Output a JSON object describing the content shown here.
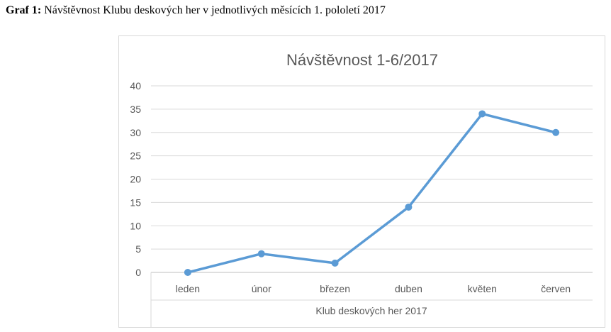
{
  "caption": {
    "label": "Graf 1:",
    "text": " Návštěvnost Klubu deskových her v jednotlivých měsících 1. pololetí 2017"
  },
  "chart_data": {
    "type": "line",
    "title": "Návštěvnost 1-6/2017",
    "categories": [
      "leden",
      "únor",
      "březen",
      "duben",
      "květen",
      "červen"
    ],
    "values": [
      0,
      4,
      2,
      14,
      34,
      30
    ],
    "xlabel": "Klub deskových her 2017",
    "ylabel": "",
    "ylim": [
      0,
      40
    ],
    "yticks": [
      0,
      5,
      10,
      15,
      20,
      25,
      30,
      35,
      40
    ],
    "grid": true,
    "legend": "none",
    "color": "#5b9bd5"
  }
}
